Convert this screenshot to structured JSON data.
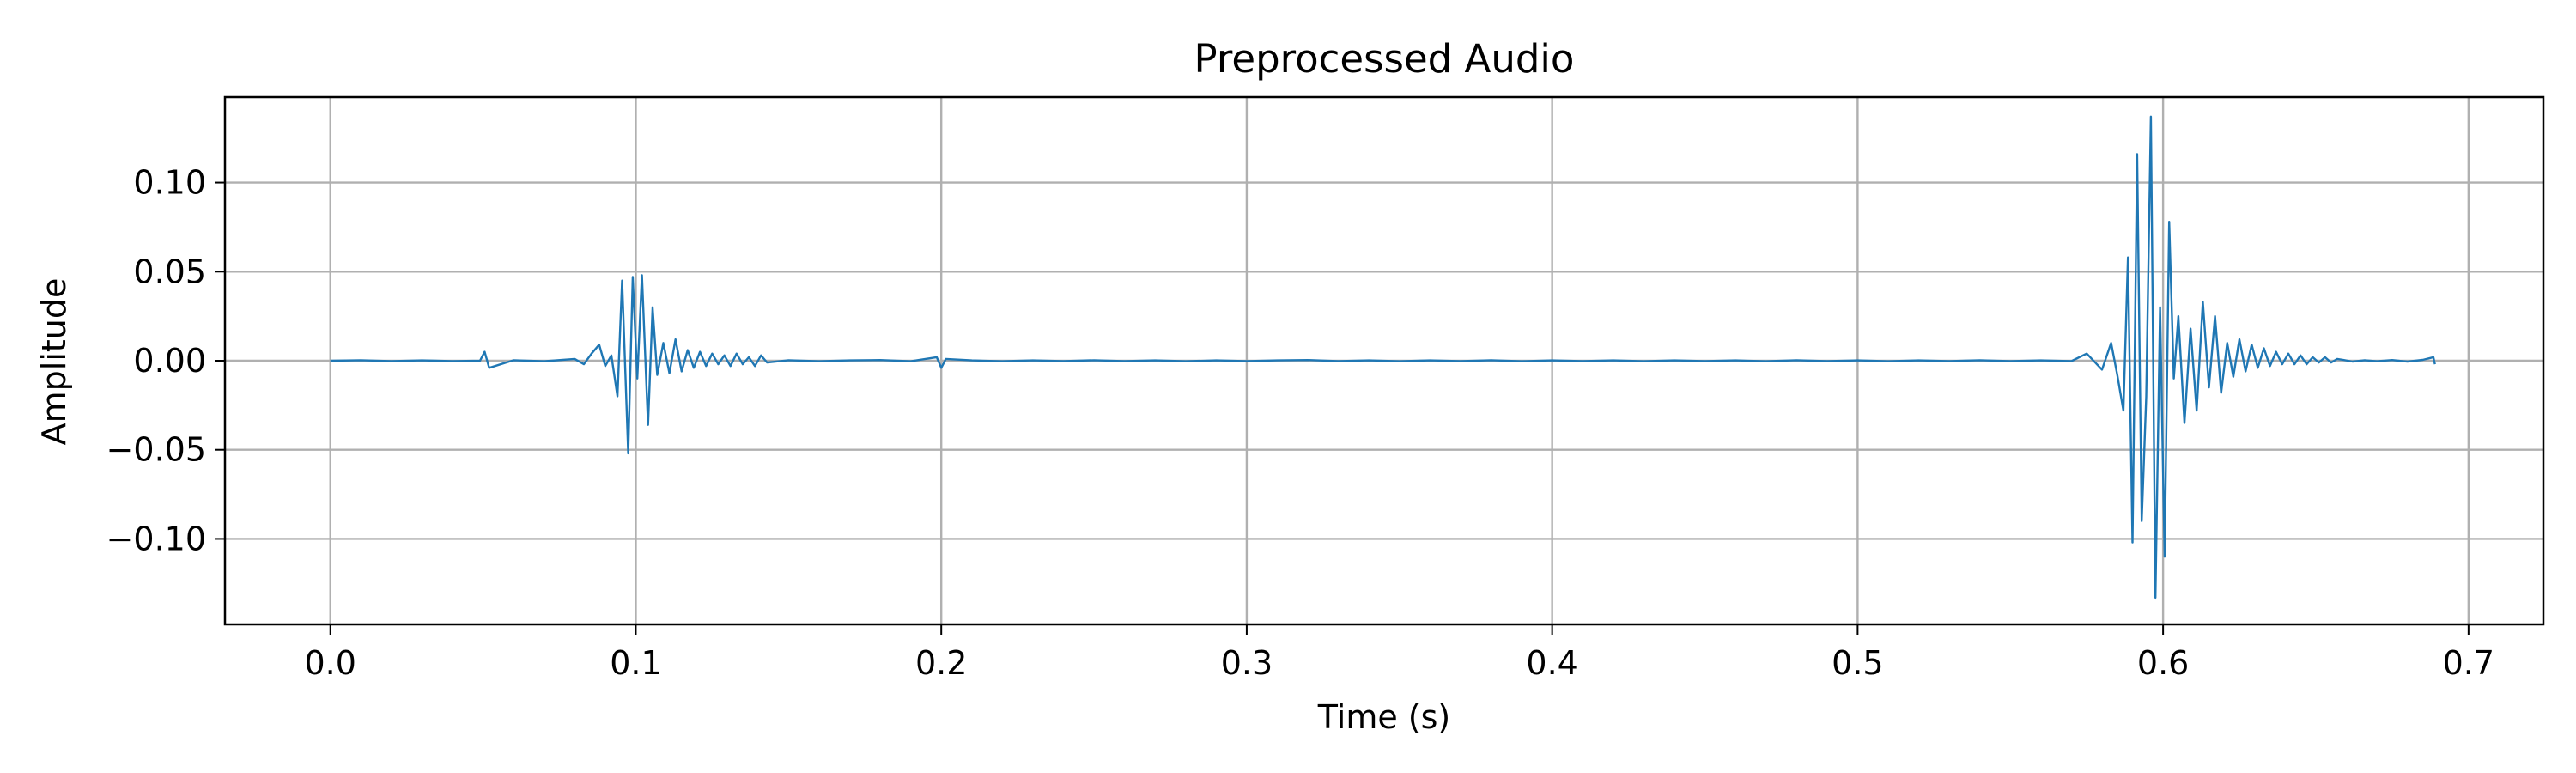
{
  "chart_data": {
    "type": "line",
    "title": "Preprocessed Audio",
    "xlabel": "Time (s)",
    "ylabel": "Amplitude",
    "xlim": [
      -0.0345,
      0.7245
    ],
    "ylim": [
      -0.148,
      0.148
    ],
    "xticks": [
      0.0,
      0.1,
      0.2,
      0.3,
      0.4,
      0.5,
      0.6,
      0.7
    ],
    "xtick_labels": [
      "0.0",
      "0.1",
      "0.2",
      "0.3",
      "0.4",
      "0.5",
      "0.6",
      "0.7"
    ],
    "yticks": [
      -0.1,
      -0.05,
      0.0,
      0.05,
      0.1
    ],
    "ytick_labels": [
      "−0.10",
      "−0.05",
      "0.00",
      "0.05",
      "0.10"
    ],
    "grid": true,
    "series_color": "#1f77b4",
    "series": [
      {
        "x": [
          0.0,
          0.01,
          0.02,
          0.03,
          0.04,
          0.049,
          0.0505,
          0.052,
          0.06,
          0.07,
          0.08,
          0.083,
          0.0855,
          0.088,
          0.09,
          0.092,
          0.094,
          0.0955,
          0.0975,
          0.099,
          0.1005,
          0.102,
          0.104,
          0.1055,
          0.107,
          0.109,
          0.111,
          0.113,
          0.115,
          0.117,
          0.119,
          0.121,
          0.123,
          0.125,
          0.127,
          0.129,
          0.131,
          0.133,
          0.135,
          0.137,
          0.139,
          0.141,
          0.143,
          0.15,
          0.16,
          0.17,
          0.18,
          0.19,
          0.1985,
          0.2,
          0.2015,
          0.21,
          0.22,
          0.23,
          0.24,
          0.25,
          0.26,
          0.27,
          0.28,
          0.29,
          0.3,
          0.31,
          0.32,
          0.33,
          0.34,
          0.35,
          0.36,
          0.37,
          0.38,
          0.39,
          0.4,
          0.41,
          0.42,
          0.43,
          0.44,
          0.45,
          0.46,
          0.47,
          0.48,
          0.49,
          0.5,
          0.51,
          0.52,
          0.53,
          0.54,
          0.55,
          0.56,
          0.57,
          0.575,
          0.58,
          0.583,
          0.585,
          0.587,
          0.5885,
          0.59,
          0.5915,
          0.593,
          0.5945,
          0.596,
          0.5975,
          0.599,
          0.6005,
          0.602,
          0.6035,
          0.605,
          0.607,
          0.609,
          0.611,
          0.613,
          0.615,
          0.617,
          0.619,
          0.621,
          0.623,
          0.625,
          0.627,
          0.629,
          0.631,
          0.633,
          0.635,
          0.637,
          0.639,
          0.641,
          0.643,
          0.645,
          0.647,
          0.649,
          0.651,
          0.653,
          0.655,
          0.657,
          0.659,
          0.662,
          0.666,
          0.67,
          0.675,
          0.68,
          0.685,
          0.6885,
          0.689
        ],
        "y": [
          0.0,
          0.0003,
          -0.0002,
          0.0002,
          -0.0002,
          0.0,
          0.005,
          -0.004,
          0.0003,
          -0.0003,
          0.001,
          -0.002,
          0.004,
          0.009,
          -0.003,
          0.003,
          -0.02,
          0.045,
          -0.052,
          0.047,
          -0.01,
          0.048,
          -0.036,
          0.03,
          -0.008,
          0.01,
          -0.007,
          0.012,
          -0.006,
          0.006,
          -0.004,
          0.005,
          -0.003,
          0.004,
          -0.002,
          0.003,
          -0.003,
          0.004,
          -0.002,
          0.002,
          -0.003,
          0.003,
          -0.001,
          0.0003,
          -0.0003,
          0.0002,
          0.0004,
          -0.0003,
          0.002,
          -0.004,
          0.001,
          0.0002,
          -0.0003,
          0.0002,
          -0.0002,
          0.0003,
          -0.0002,
          0.0002,
          -0.0003,
          0.0002,
          -0.0002,
          0.0002,
          0.0004,
          -0.0002,
          0.0002,
          -0.0003,
          0.0002,
          -0.0002,
          0.0003,
          -0.0003,
          0.0002,
          -0.0002,
          0.0002,
          -0.0003,
          0.0002,
          -0.0002,
          0.0002,
          -0.0003,
          0.0003,
          -0.0002,
          0.0002,
          -0.0003,
          0.0002,
          -0.0002,
          0.0003,
          -0.0002,
          0.0002,
          -0.0002,
          0.004,
          -0.005,
          0.01,
          -0.008,
          -0.028,
          0.058,
          -0.102,
          0.116,
          -0.09,
          -0.02,
          0.137,
          -0.133,
          0.03,
          -0.11,
          0.078,
          -0.01,
          0.025,
          -0.035,
          0.018,
          -0.028,
          0.033,
          -0.015,
          0.025,
          -0.018,
          0.01,
          -0.009,
          0.012,
          -0.006,
          0.009,
          -0.004,
          0.007,
          -0.003,
          0.005,
          -0.002,
          0.004,
          -0.002,
          0.003,
          -0.002,
          0.002,
          -0.001,
          0.002,
          -0.001,
          0.001,
          0.0005,
          -0.0005,
          0.0003,
          -0.0003,
          0.0004,
          -0.0005,
          0.0005,
          0.002,
          -0.002
        ]
      }
    ]
  }
}
